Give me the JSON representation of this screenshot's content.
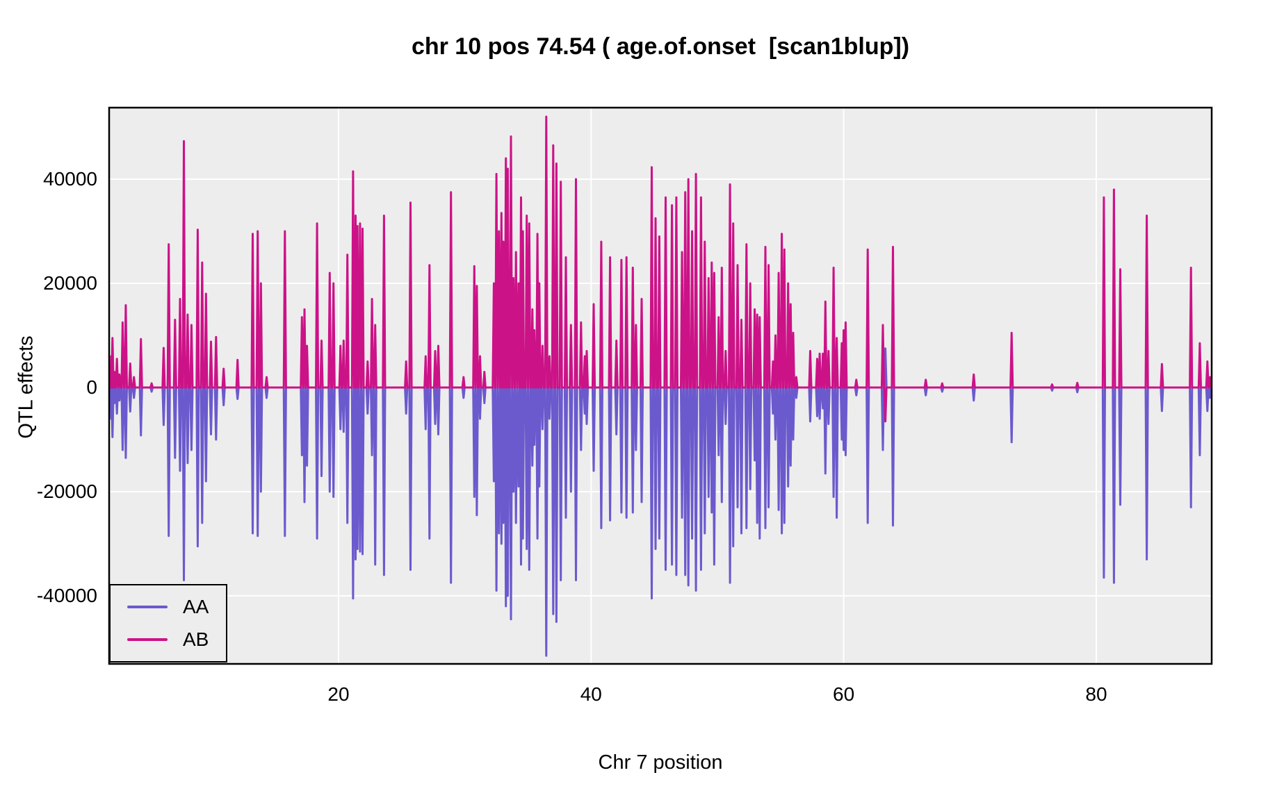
{
  "chart_data": {
    "type": "line",
    "title": "chr 10 pos 74.54 ( age.of.onset  [scan1blup])",
    "xlabel": "Chr 7 position",
    "ylabel": "QTL effects",
    "x_ticks": [
      20,
      40,
      60,
      80
    ],
    "y_ticks": [
      40000,
      20000,
      0,
      -20000,
      -40000
    ],
    "xlim": [
      1.84,
      89.14
    ],
    "ylim": [
      -53100,
      53700
    ],
    "grid": "major gridlines only, white on grey panel",
    "legend": {
      "position": "bottom-left",
      "entries": [
        {
          "label": "AA",
          "color": "#6A5ACD"
        },
        {
          "label": "AB",
          "color": "#CC1287"
        }
      ]
    },
    "colors": {
      "panel_background": "#EDEDED",
      "gridline": "#FFFFFF",
      "border": "#000000",
      "series_aa": "#6A5ACD",
      "series_ab": "#CC1287"
    },
    "series_note": "spikes = [chr7_position, AB_effect_thousands, AA_effect_thousands]; values in raw units = thousands x 1000",
    "spikes": [
      [
        2.0,
        6,
        -6
      ],
      [
        2.1,
        9.5,
        -9.5
      ],
      [
        2.25,
        3,
        -3
      ],
      [
        2.45,
        5.5,
        -5
      ],
      [
        2.65,
        2.5,
        -2.5
      ],
      [
        2.9,
        12.5,
        -12
      ],
      [
        3.15,
        15.8,
        -13.5
      ],
      [
        3.5,
        4.6,
        -4.6
      ],
      [
        3.8,
        2,
        -2
      ],
      [
        4.35,
        9.3,
        -9.2
      ],
      [
        5.2,
        0.8,
        -0.8
      ],
      [
        6.15,
        7.6,
        -7.2
      ],
      [
        6.55,
        27.5,
        -28.5
      ],
      [
        7.05,
        13,
        -13.5
      ],
      [
        7.45,
        17,
        -16
      ],
      [
        7.75,
        47.3,
        -37
      ],
      [
        8.05,
        14,
        -14.5
      ],
      [
        8.35,
        12,
        -12
      ],
      [
        8.85,
        30.3,
        -30.5
      ],
      [
        9.2,
        24,
        -26
      ],
      [
        9.5,
        18,
        -18
      ],
      [
        9.9,
        8.8,
        -9
      ],
      [
        10.3,
        9.7,
        -10
      ],
      [
        10.9,
        3.6,
        -3.4
      ],
      [
        12.0,
        5.3,
        -2.2
      ],
      [
        13.2,
        29.5,
        -28
      ],
      [
        13.6,
        30,
        -28.5
      ],
      [
        13.85,
        20,
        -20
      ],
      [
        14.3,
        2,
        -2
      ],
      [
        15.75,
        30,
        -28.5
      ],
      [
        17.1,
        13.5,
        -13
      ],
      [
        17.3,
        15,
        -22
      ],
      [
        17.5,
        8,
        -15
      ],
      [
        18.3,
        31.5,
        -29
      ],
      [
        18.65,
        9,
        -17
      ],
      [
        19.3,
        22,
        -20
      ],
      [
        19.6,
        20,
        -21
      ],
      [
        20.15,
        8,
        -8
      ],
      [
        20.4,
        9,
        -8.5
      ],
      [
        20.7,
        25.5,
        -26
      ],
      [
        21.15,
        41.5,
        -40.5
      ],
      [
        21.35,
        33,
        -33
      ],
      [
        21.5,
        31,
        -31
      ],
      [
        21.7,
        31.5,
        -31.5
      ],
      [
        21.9,
        30.5,
        -32
      ],
      [
        22.3,
        5,
        -5
      ],
      [
        22.65,
        17,
        -13
      ],
      [
        22.9,
        12,
        -34
      ],
      [
        23.6,
        33,
        -36
      ],
      [
        25.35,
        5,
        -5
      ],
      [
        25.7,
        35.5,
        -35
      ],
      [
        26.9,
        6,
        -8
      ],
      [
        27.2,
        23.5,
        -29
      ],
      [
        27.65,
        7,
        -7
      ],
      [
        27.9,
        8,
        -9
      ],
      [
        28.9,
        37.5,
        -37.5
      ],
      [
        29.9,
        2,
        -2
      ],
      [
        30.75,
        23.3,
        -21
      ],
      [
        30.95,
        19.5,
        -24.5
      ],
      [
        31.2,
        6,
        -6
      ],
      [
        31.55,
        3,
        -3
      ],
      [
        32.3,
        20,
        -18
      ],
      [
        32.5,
        41,
        -39
      ],
      [
        32.7,
        30,
        -28
      ],
      [
        32.9,
        33.5,
        -30
      ],
      [
        33.05,
        28,
        -26
      ],
      [
        33.25,
        44,
        -42
      ],
      [
        33.4,
        42,
        -40
      ],
      [
        33.65,
        48.2,
        -44.5
      ],
      [
        33.85,
        21,
        -20
      ],
      [
        34.05,
        26,
        -26
      ],
      [
        34.25,
        20,
        -19
      ],
      [
        34.45,
        36.5,
        -34
      ],
      [
        34.6,
        30,
        -29
      ],
      [
        34.9,
        33,
        -31
      ],
      [
        35.1,
        31.5,
        -35
      ],
      [
        35.35,
        15,
        -15
      ],
      [
        35.5,
        11,
        -11
      ],
      [
        35.75,
        29.5,
        -29
      ],
      [
        35.9,
        20,
        -19
      ],
      [
        36.15,
        8,
        -8
      ],
      [
        36.45,
        52,
        -51.5
      ],
      [
        36.7,
        6,
        -6
      ],
      [
        37.0,
        46.5,
        -43.5
      ],
      [
        37.25,
        43,
        -45
      ],
      [
        37.6,
        39.5,
        -37
      ],
      [
        38.0,
        25,
        -25
      ],
      [
        38.4,
        12,
        -20
      ],
      [
        38.8,
        40,
        -37
      ],
      [
        39.2,
        12.5,
        -12
      ],
      [
        39.5,
        6,
        -5
      ],
      [
        39.65,
        7,
        -7
      ],
      [
        40.2,
        16,
        -16
      ],
      [
        40.8,
        28,
        -27
      ],
      [
        41.5,
        25,
        -25.5
      ],
      [
        42.0,
        9,
        -9
      ],
      [
        42.4,
        24.5,
        -24
      ],
      [
        42.8,
        25,
        -25
      ],
      [
        43.3,
        23,
        -24
      ],
      [
        43.55,
        12,
        -12
      ],
      [
        44.0,
        17,
        -22
      ],
      [
        44.8,
        42.3,
        -40.5
      ],
      [
        45.1,
        32.5,
        -31
      ],
      [
        45.4,
        29,
        -29
      ],
      [
        45.9,
        36.5,
        -35
      ],
      [
        46.4,
        35,
        -34
      ],
      [
        46.75,
        36.5,
        -36
      ],
      [
        47.2,
        26,
        -25
      ],
      [
        47.45,
        37.5,
        -36
      ],
      [
        47.7,
        40,
        -38
      ],
      [
        48.0,
        30,
        -29
      ],
      [
        48.3,
        41,
        -39
      ],
      [
        48.7,
        36.5,
        -35
      ],
      [
        49.0,
        28,
        -28
      ],
      [
        49.3,
        21,
        -21
      ],
      [
        49.55,
        24,
        -24
      ],
      [
        49.75,
        22,
        -34
      ],
      [
        50.1,
        13.5,
        -13
      ],
      [
        50.35,
        23,
        -22
      ],
      [
        50.65,
        7,
        -7
      ],
      [
        51.0,
        39,
        -37.5
      ],
      [
        51.25,
        31.5,
        -30.5
      ],
      [
        51.6,
        23.5,
        -23
      ],
      [
        51.9,
        13,
        -28
      ],
      [
        52.3,
        27.5,
        -27
      ],
      [
        52.6,
        20,
        -19.5
      ],
      [
        52.95,
        15,
        -14
      ],
      [
        53.15,
        14,
        -26
      ],
      [
        53.35,
        13.5,
        -29
      ],
      [
        53.8,
        27,
        -27
      ],
      [
        54.05,
        23.5,
        -23
      ],
      [
        54.4,
        5,
        -5
      ],
      [
        54.6,
        10,
        -10
      ],
      [
        54.85,
        22,
        -23.5
      ],
      [
        55.1,
        29.5,
        -28
      ],
      [
        55.3,
        26.5,
        -26
      ],
      [
        55.6,
        20,
        -19
      ],
      [
        55.8,
        16,
        -15
      ],
      [
        56.0,
        10.5,
        -10
      ],
      [
        56.25,
        2,
        -2
      ],
      [
        57.35,
        7,
        -6.5
      ],
      [
        57.9,
        5.5,
        -5.5
      ],
      [
        58.1,
        6.5,
        -6
      ],
      [
        58.35,
        6.5,
        -4
      ],
      [
        58.55,
        16.5,
        -16.5
      ],
      [
        58.8,
        7,
        -7
      ],
      [
        59.2,
        23,
        -21
      ],
      [
        59.45,
        9.5,
        -25
      ],
      [
        59.85,
        8.5,
        -10
      ],
      [
        60.0,
        11,
        -12
      ],
      [
        60.15,
        12.5,
        -13
      ],
      [
        61.0,
        1.5,
        -1.5
      ],
      [
        61.9,
        26.5,
        -26
      ],
      [
        63.1,
        12,
        -12
      ],
      [
        63.3,
        -6.5,
        7.5
      ],
      [
        63.9,
        27,
        -26.5
      ],
      [
        66.5,
        1.5,
        -1.5
      ],
      [
        67.8,
        0.8,
        -0.8
      ],
      [
        70.3,
        2.5,
        -2.5
      ],
      [
        73.3,
        10.5,
        -10.5
      ],
      [
        76.5,
        0.6,
        -0.6
      ],
      [
        78.5,
        0.9,
        -0.9
      ],
      [
        80.6,
        36.5,
        -36.5
      ],
      [
        81.4,
        38,
        -37.5
      ],
      [
        81.9,
        22.7,
        -22.5
      ],
      [
        84.0,
        33,
        -33
      ],
      [
        85.2,
        4.5,
        -4.5
      ],
      [
        87.5,
        23,
        -23
      ],
      [
        88.2,
        8.5,
        -13
      ],
      [
        88.8,
        5,
        -4.5
      ],
      [
        89.0,
        2,
        -2
      ]
    ]
  }
}
